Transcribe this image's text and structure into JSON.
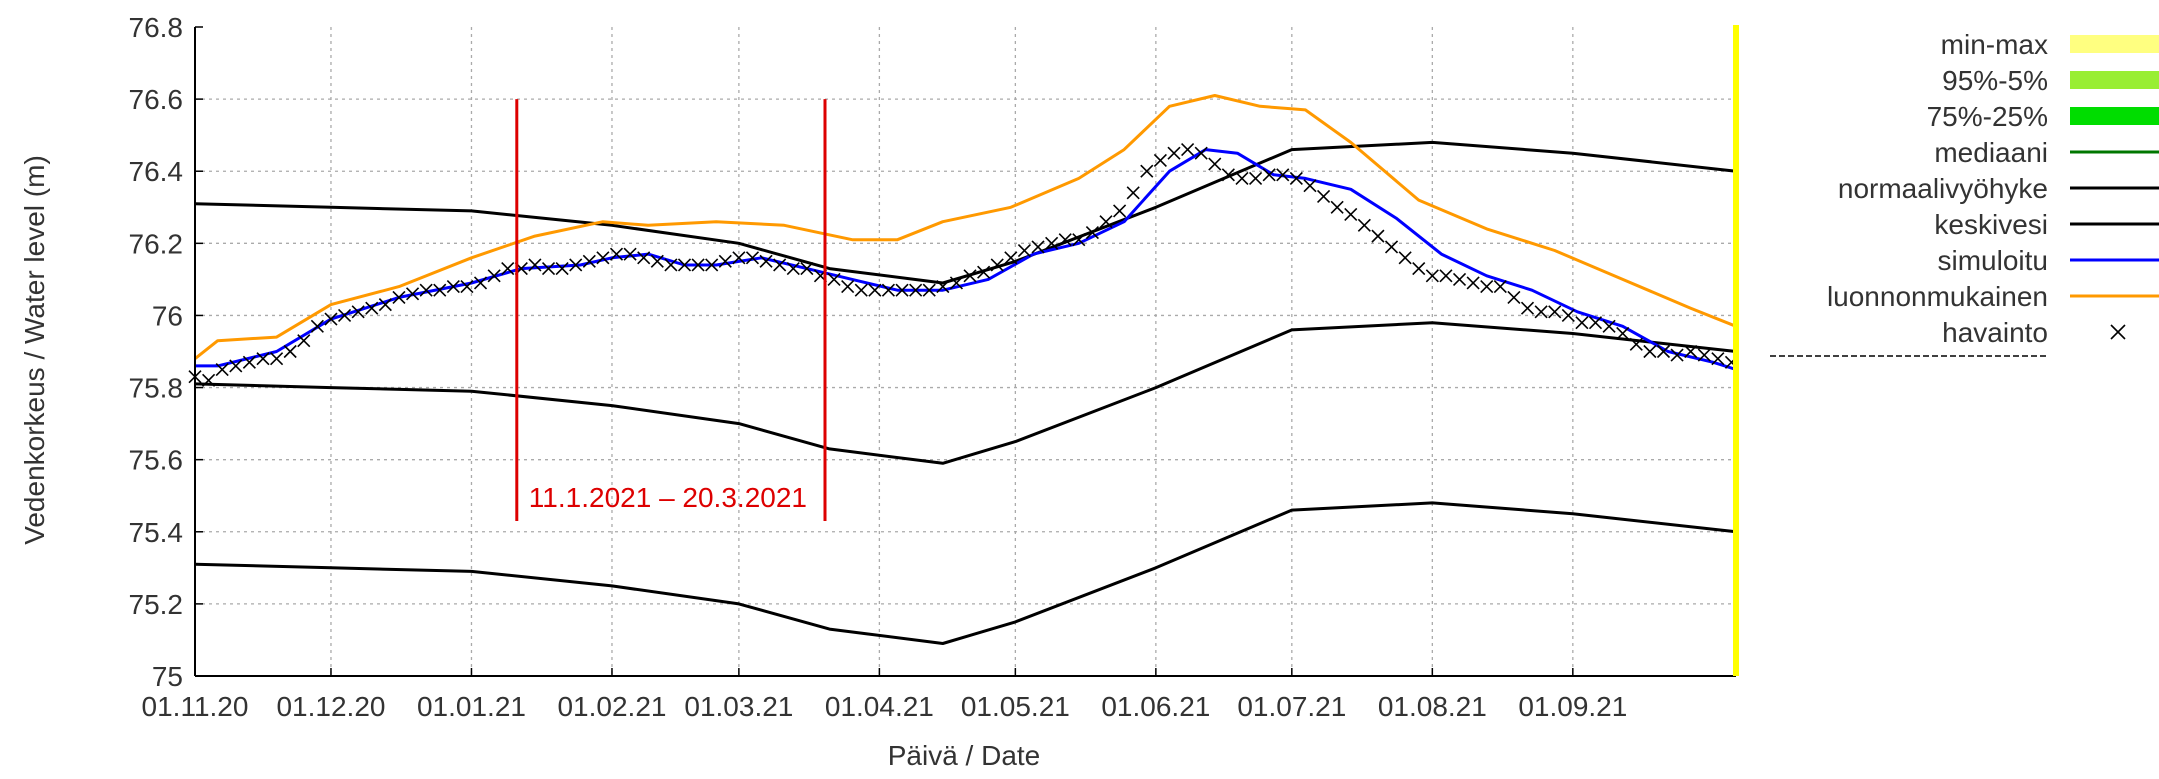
{
  "chart_data": {
    "type": "line",
    "title": "",
    "xlabel": "Päivä / Date",
    "ylabel": "Vedenkorkeus / Water level (m)",
    "ylim": [
      75,
      76.8
    ],
    "yticks": [
      "75",
      "75.2",
      "75.4",
      "75.6",
      "75.8",
      "76",
      "76.2",
      "76.4",
      "76.6",
      "76.8"
    ],
    "x_range_days": [
      0,
      340
    ],
    "xticks": [
      {
        "label": "01.11.20",
        "day": 0
      },
      {
        "label": "01.12.20",
        "day": 30
      },
      {
        "label": "01.01.21",
        "day": 61
      },
      {
        "label": "01.02.21",
        "day": 92
      },
      {
        "label": "01.03.21",
        "day": 120
      },
      {
        "label": "01.04.21",
        "day": 151
      },
      {
        "label": "01.05.21",
        "day": 181
      },
      {
        "label": "01.06.21",
        "day": 212
      },
      {
        "label": "01.07.21",
        "day": 242
      },
      {
        "label": "01.08.21",
        "day": 273
      },
      {
        "label": "01.09.21",
        "day": 304
      }
    ],
    "grid": true,
    "legend_position": "right",
    "legend": [
      {
        "label": "min-max",
        "kind": "fill",
        "color": "#ffff80"
      },
      {
        "label": "95%-5%",
        "kind": "fill",
        "color": "#99ee33"
      },
      {
        "label": "75%-25%",
        "kind": "fill",
        "color": "#00dd00"
      },
      {
        "label": "mediaani",
        "kind": "line",
        "color": "#007700"
      },
      {
        "label": "normaalivyöhyke",
        "kind": "line",
        "color": "#000000"
      },
      {
        "label": "keskivesi",
        "kind": "line",
        "color": "#000000"
      },
      {
        "label": "simuloitu",
        "kind": "line",
        "color": "#0000ff"
      },
      {
        "label": "luonnonmukainen",
        "kind": "line",
        "color": "#ff9900"
      },
      {
        "label": "havainto",
        "kind": "marker",
        "color": "#000000"
      }
    ],
    "period_annotation": {
      "text": "11.1.2021 – 20.3.2021",
      "start_day": 71,
      "end_day": 139,
      "y_top": 76.6,
      "y_bottom": 75.43,
      "color": "#dd0000"
    },
    "series": [
      {
        "name": "normaalivyöhyke",
        "role": "upper",
        "color": "#000000",
        "x": [
          0,
          30,
          61,
          92,
          120,
          140,
          165,
          181,
          212,
          242,
          273,
          304,
          340
        ],
        "y": [
          76.31,
          76.3,
          76.29,
          76.25,
          76.2,
          76.13,
          76.09,
          76.15,
          76.3,
          76.46,
          76.48,
          76.45,
          76.4
        ]
      },
      {
        "name": "keskivesi",
        "color": "#000000",
        "x": [
          0,
          30,
          61,
          92,
          120,
          140,
          165,
          181,
          212,
          242,
          273,
          304,
          340
        ],
        "y": [
          75.81,
          75.8,
          75.79,
          75.75,
          75.7,
          75.63,
          75.59,
          75.65,
          75.8,
          75.96,
          75.98,
          75.95,
          75.9
        ]
      },
      {
        "name": "normaalivyöhyke",
        "role": "lower",
        "color": "#000000",
        "x": [
          0,
          30,
          61,
          92,
          120,
          140,
          165,
          181,
          212,
          242,
          273,
          304,
          340
        ],
        "y": [
          75.31,
          75.3,
          75.29,
          75.25,
          75.2,
          75.13,
          75.09,
          75.15,
          75.3,
          75.46,
          75.48,
          75.45,
          75.4
        ]
      },
      {
        "name": "luonnonmukainen",
        "color": "#ff9900",
        "x": [
          0,
          5,
          18,
          30,
          45,
          61,
          75,
          90,
          100,
          115,
          130,
          145,
          155,
          165,
          180,
          195,
          205,
          215,
          225,
          235,
          245,
          255,
          270,
          285,
          300,
          315,
          330,
          340
        ],
        "y": [
          75.88,
          75.93,
          75.94,
          76.03,
          76.08,
          76.16,
          76.22,
          76.26,
          76.25,
          76.26,
          76.25,
          76.21,
          76.21,
          76.26,
          76.3,
          76.38,
          76.46,
          76.58,
          76.61,
          76.58,
          76.57,
          76.48,
          76.32,
          76.24,
          76.18,
          76.1,
          76.02,
          75.97
        ]
      },
      {
        "name": "simuloitu",
        "color": "#0000ff",
        "x": [
          0,
          5,
          18,
          30,
          45,
          61,
          72,
          85,
          92,
          100,
          108,
          115,
          125,
          135,
          145,
          155,
          165,
          175,
          185,
          195,
          205,
          215,
          223,
          230,
          238,
          245,
          255,
          265,
          275,
          285,
          295,
          305,
          315,
          325,
          335,
          340
        ],
        "y": [
          75.86,
          75.86,
          75.9,
          75.99,
          76.05,
          76.09,
          76.13,
          76.14,
          76.16,
          76.17,
          76.14,
          76.14,
          76.16,
          76.13,
          76.1,
          76.07,
          76.07,
          76.1,
          76.17,
          76.2,
          76.26,
          76.4,
          76.46,
          76.45,
          76.39,
          76.38,
          76.35,
          76.27,
          76.17,
          76.11,
          76.07,
          76.01,
          75.97,
          75.9,
          75.87,
          75.85
        ]
      },
      {
        "name": "havainto",
        "type": "scatter",
        "marker": "x",
        "color": "#000000",
        "x": [
          0,
          3,
          6,
          9,
          12,
          15,
          18,
          21,
          24,
          27,
          30,
          33,
          36,
          39,
          42,
          45,
          48,
          51,
          54,
          57,
          60,
          63,
          66,
          69,
          72,
          75,
          78,
          81,
          84,
          87,
          90,
          93,
          96,
          99,
          102,
          105,
          108,
          111,
          114,
          117,
          120,
          123,
          126,
          129,
          132,
          135,
          138,
          141,
          144,
          147,
          150,
          153,
          156,
          159,
          162,
          165,
          168,
          171,
          174,
          177,
          180,
          183,
          186,
          189,
          192,
          195,
          198,
          201,
          204,
          207,
          210,
          213,
          216,
          219,
          222,
          225,
          228,
          231,
          234,
          237,
          240,
          243,
          246,
          249,
          252,
          255,
          258,
          261,
          264,
          267,
          270,
          273,
          276,
          279,
          282,
          285,
          288,
          291,
          294,
          297,
          300,
          303,
          306,
          309,
          312,
          315,
          318,
          321,
          324,
          327,
          330,
          333,
          336,
          339
        ],
        "y": [
          75.83,
          75.82,
          75.85,
          75.86,
          75.87,
          75.88,
          75.88,
          75.9,
          75.93,
          75.97,
          75.99,
          76,
          76.01,
          76.02,
          76.03,
          76.05,
          76.06,
          76.07,
          76.07,
          76.08,
          76.08,
          76.09,
          76.11,
          76.13,
          76.13,
          76.14,
          76.13,
          76.13,
          76.14,
          76.15,
          76.16,
          76.17,
          76.17,
          76.16,
          76.15,
          76.14,
          76.14,
          76.14,
          76.14,
          76.15,
          76.16,
          76.16,
          76.15,
          76.14,
          76.13,
          76.13,
          76.11,
          76.1,
          76.08,
          76.07,
          76.07,
          76.07,
          76.07,
          76.07,
          76.07,
          76.08,
          76.09,
          76.11,
          76.12,
          76.14,
          76.16,
          76.18,
          76.19,
          76.2,
          76.21,
          76.21,
          76.23,
          76.26,
          76.29,
          76.34,
          76.4,
          76.43,
          76.45,
          76.46,
          76.45,
          76.42,
          76.39,
          76.38,
          76.38,
          76.39,
          76.39,
          76.38,
          76.36,
          76.33,
          76.3,
          76.28,
          76.25,
          76.22,
          76.19,
          76.16,
          76.13,
          76.11,
          76.11,
          76.1,
          76.09,
          76.08,
          76.08,
          76.05,
          76.02,
          76.01,
          76.01,
          76,
          75.98,
          75.98,
          75.97,
          75.95,
          75.92,
          75.9,
          75.9,
          75.89,
          75.9,
          75.89,
          75.88,
          75.87
        ]
      }
    ]
  }
}
